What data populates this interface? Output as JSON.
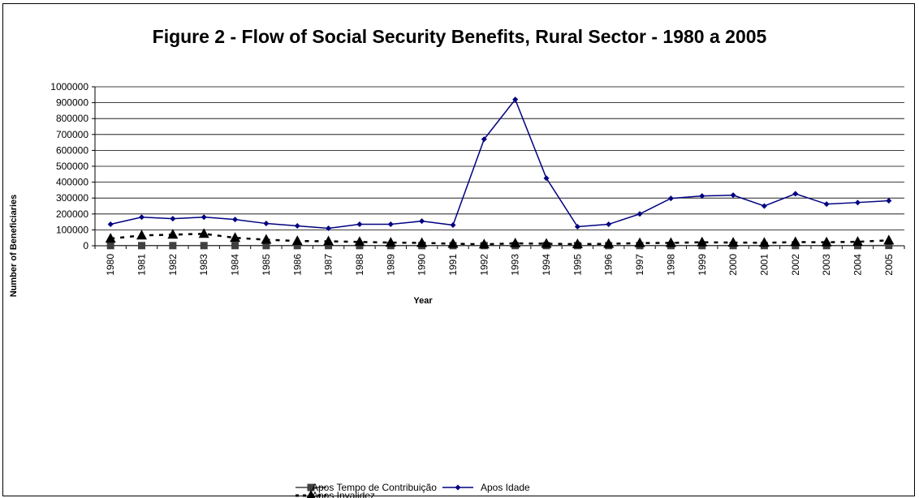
{
  "chart_data": {
    "type": "line",
    "title": "Figure 2 - Flow of Social Security Benefits, Rural Sector - 1980 a 2005",
    "xlabel": "Year",
    "ylabel": "Number of Beneficiaries",
    "ylim": [
      0,
      1000000
    ],
    "yticks": [
      "0",
      "100000",
      "200000",
      "300000",
      "400000",
      "500000",
      "600000",
      "700000",
      "800000",
      "900000",
      "1000000"
    ],
    "ytick_values": [
      0,
      100000,
      200000,
      300000,
      400000,
      500000,
      600000,
      700000,
      800000,
      900000,
      1000000
    ],
    "grid": "horizontal",
    "legend_position": "bottom",
    "categories": [
      "1980",
      "1981",
      "1982",
      "1983",
      "1984",
      "1985",
      "1986",
      "1987",
      "1988",
      "1989",
      "1990",
      "1991",
      "1992",
      "1993",
      "1994",
      "1995",
      "1996",
      "1997",
      "1998",
      "1999",
      "2000",
      "2001",
      "2002",
      "2003",
      "2004",
      "2005"
    ],
    "series": [
      {
        "name": "Apos Tempo de Contribuição",
        "color": "#404040",
        "marker": "square",
        "values": [
          1000,
          1000,
          1000,
          1000,
          1000,
          1000,
          1000,
          1000,
          1000,
          1000,
          1000,
          1000,
          1000,
          1000,
          1000,
          1000,
          1000,
          1000,
          1000,
          1000,
          1000,
          1000,
          1000,
          1000,
          1000,
          2000
        ]
      },
      {
        "name": "Apos Idade",
        "color": "#000080",
        "marker": "diamond",
        "values": [
          135000,
          180000,
          170000,
          180000,
          165000,
          140000,
          125000,
          110000,
          135000,
          135000,
          155000,
          130000,
          670000,
          920000,
          425000,
          120000,
          135000,
          200000,
          298000,
          313000,
          318000,
          250000,
          327000,
          262000,
          272000,
          283000
        ]
      },
      {
        "name": "Apos Invalidez",
        "color": "#000000",
        "marker": "triangle",
        "values": [
          45000,
          65000,
          70000,
          75000,
          50000,
          38000,
          30000,
          28000,
          24000,
          20000,
          18000,
          13000,
          9000,
          15000,
          13000,
          10000,
          12000,
          17000,
          18000,
          22000,
          20000,
          19000,
          23000,
          22000,
          25000,
          34000
        ]
      }
    ]
  }
}
